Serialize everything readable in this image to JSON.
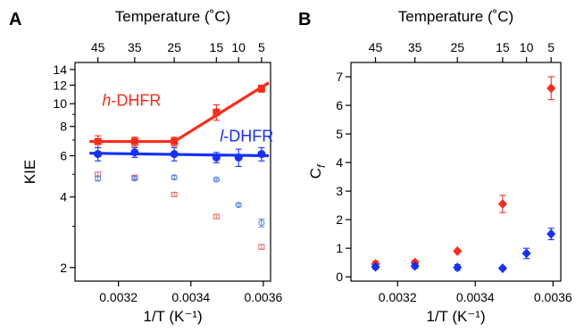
{
  "colors": {
    "red": "#ff2a1a",
    "blue": "#1530ff",
    "red_light": "#f06a6a",
    "blue_light": "#4f7fe8",
    "axis": "#000000"
  },
  "chart_data": [
    {
      "panel": "A",
      "type": "scatter",
      "xlabel": "1/T (K⁻¹)",
      "ylabel": "KIE",
      "top_xlabel": "Temperature (˚C)",
      "xlim": [
        0.00308,
        0.00362
      ],
      "ylim": [
        1.75,
        15.0
      ],
      "y_scale": "log",
      "x_ticks": [
        {
          "value": 0.0032,
          "label": "0.0032"
        },
        {
          "value": 0.0034,
          "label": "0.0034"
        },
        {
          "value": 0.0036,
          "label": "0.0036"
        }
      ],
      "y_ticks": [
        {
          "value": 2,
          "label": "2"
        },
        {
          "value": 4,
          "label": "4"
        },
        {
          "value": 6,
          "label": "6"
        },
        {
          "value": 8,
          "label": "8"
        },
        {
          "value": 10,
          "label": "10"
        },
        {
          "value": 12,
          "label": "12"
        },
        {
          "value": 14,
          "label": "14"
        }
      ],
      "top_ticks": [
        {
          "x": 0.0031432,
          "label": "45"
        },
        {
          "x": 0.0032447,
          "label": "35"
        },
        {
          "x": 0.003354,
          "label": "25"
        },
        {
          "x": 0.0034704,
          "label": "15"
        },
        {
          "x": 0.0035317,
          "label": "10"
        },
        {
          "x": 0.0035951,
          "label": "5"
        }
      ],
      "series": [
        {
          "name": "h-DHFR",
          "color_key": "red",
          "marker": "square",
          "x": [
            0.0031432,
            0.0032447,
            0.003354,
            0.0034704,
            0.0035951
          ],
          "y": [
            6.9,
            6.9,
            6.9,
            9.2,
            11.6
          ],
          "err": [
            0.4,
            0.3,
            0.3,
            0.7,
            0.4
          ]
        },
        {
          "name": "l-DHFR",
          "color_key": "blue",
          "marker": "circle",
          "x": [
            0.0031432,
            0.0032447,
            0.003354,
            0.0034704,
            0.0035317,
            0.0035951
          ],
          "y": [
            6.1,
            6.2,
            6.1,
            5.9,
            5.9,
            6.1
          ],
          "err": [
            0.4,
            0.3,
            0.4,
            0.3,
            0.5,
            0.4
          ]
        },
        {
          "name": "",
          "color_key": "red_light",
          "marker": "open-square",
          "x": [
            0.0031432,
            0.0032447,
            0.003354,
            0.0034704,
            0.0035951
          ],
          "y": [
            5.0,
            4.85,
            4.1,
            3.3,
            2.45
          ],
          "err": [
            0.1,
            0.08,
            0.08,
            0.07,
            0.06
          ]
        },
        {
          "name": "",
          "color_key": "blue_light",
          "marker": "open-circle",
          "x": [
            0.0031432,
            0.0032447,
            0.003354,
            0.0034704,
            0.0035317,
            0.0035951
          ],
          "y": [
            4.8,
            4.8,
            4.85,
            4.75,
            3.7,
            3.1
          ],
          "err": [
            0.12,
            0.08,
            0.08,
            0.05,
            0.05,
            0.12
          ]
        }
      ],
      "fit_lines": [
        {
          "color_key": "red",
          "points": [
            [
              0.00312,
              6.9
            ],
            [
              0.003354,
              6.9
            ],
            [
              0.003615,
              12.3
            ]
          ]
        },
        {
          "color_key": "blue",
          "points": [
            [
              0.00312,
              6.15
            ],
            [
              0.003615,
              6.0
            ]
          ]
        }
      ],
      "annotations": [
        {
          "text_key": "h_label",
          "italic": "h",
          "rest": "-DHFR",
          "color_key": "red",
          "x": 0.003155,
          "y": 9.8
        },
        {
          "text_key": "l_label",
          "italic": "l",
          "rest": "-DHFR",
          "color_key": "blue",
          "x": 0.00348,
          "y": 6.9
        }
      ]
    },
    {
      "panel": "B",
      "type": "scatter",
      "xlabel": "1/T (K⁻¹)",
      "ylabel_main": "C",
      "ylabel_sub": "f",
      "top_xlabel": "Temperature (˚C)",
      "xlim": [
        0.00308,
        0.00362
      ],
      "ylim": [
        -0.15,
        7.5
      ],
      "y_scale": "linear",
      "x_ticks": [
        {
          "value": 0.0032,
          "label": "0.0032"
        },
        {
          "value": 0.0034,
          "label": "0.0034"
        },
        {
          "value": 0.0036,
          "label": "0.0036"
        }
      ],
      "y_ticks": [
        {
          "value": 0,
          "label": "0"
        },
        {
          "value": 1,
          "label": "1"
        },
        {
          "value": 2,
          "label": "2"
        },
        {
          "value": 3,
          "label": "3"
        },
        {
          "value": 4,
          "label": "4"
        },
        {
          "value": 5,
          "label": "5"
        },
        {
          "value": 6,
          "label": "6"
        },
        {
          "value": 7,
          "label": "7"
        }
      ],
      "top_ticks": [
        {
          "x": 0.0031432,
          "label": "45"
        },
        {
          "x": 0.0032447,
          "label": "35"
        },
        {
          "x": 0.003354,
          "label": "25"
        },
        {
          "x": 0.0034704,
          "label": "15"
        },
        {
          "x": 0.0035317,
          "label": "10"
        },
        {
          "x": 0.0035951,
          "label": "5"
        }
      ],
      "series": [
        {
          "name": "",
          "color_key": "red",
          "marker": "diamond",
          "x": [
            0.0031432,
            0.0032447,
            0.003354,
            0.0034704,
            0.0035951
          ],
          "y": [
            0.45,
            0.5,
            0.9,
            2.55,
            6.6
          ],
          "err": [
            0.1,
            0.08,
            0.05,
            0.3,
            0.4
          ]
        },
        {
          "name": "",
          "color_key": "blue",
          "marker": "diamond",
          "x": [
            0.0031432,
            0.0032447,
            0.003354,
            0.0034704,
            0.0035317,
            0.0035951
          ],
          "y": [
            0.35,
            0.38,
            0.33,
            0.3,
            0.82,
            1.5
          ],
          "err": [
            0.08,
            0.08,
            0.1,
            0.05,
            0.18,
            0.2
          ]
        }
      ]
    }
  ]
}
